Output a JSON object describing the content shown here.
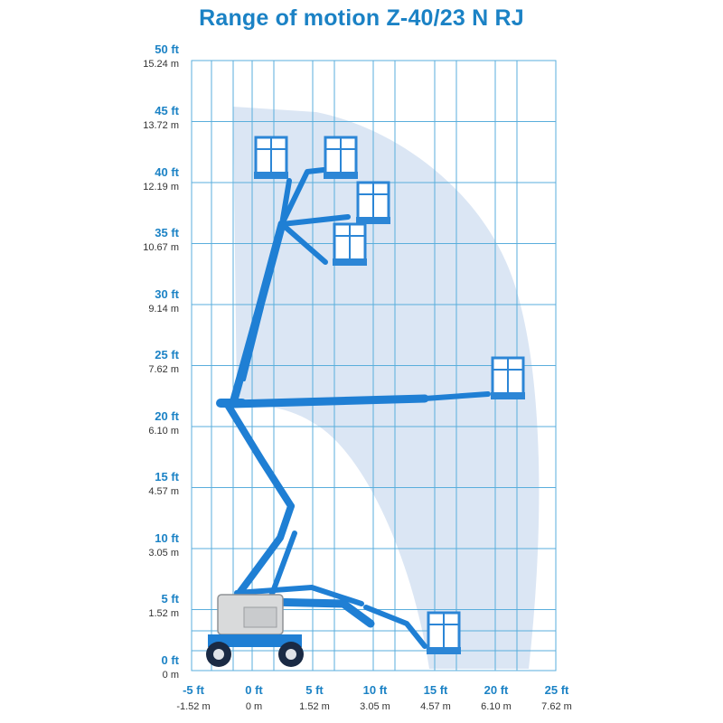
{
  "title": "Range of motion Z-40/23 N RJ",
  "colors": {
    "title": "#1b82c5",
    "grid": "#5aaedc",
    "envelope": "#dbe6f4",
    "boom": "#1f7fd4",
    "platform": "#2c86d6",
    "chassis": "#d9dadb",
    "wheel": "#1a2a44"
  },
  "axes": {
    "y_ticks": [
      {
        "ft": "50 ft",
        "m": "15.24 m"
      },
      {
        "ft": "45 ft",
        "m": "13.72 m"
      },
      {
        "ft": "40 ft",
        "m": "12.19 m"
      },
      {
        "ft": "35 ft",
        "m": "10.67 m"
      },
      {
        "ft": "30 ft",
        "m": "9.14 m"
      },
      {
        "ft": "25 ft",
        "m": "7.62 m"
      },
      {
        "ft": "20 ft",
        "m": "6.10 m"
      },
      {
        "ft": "15 ft",
        "m": "4.57 m"
      },
      {
        "ft": "10 ft",
        "m": "3.05 m"
      },
      {
        "ft": "5 ft",
        "m": "1.52 m"
      },
      {
        "ft": "0 ft",
        "m": "0 m"
      }
    ],
    "x_ticks": [
      {
        "ft": "-5 ft",
        "m": "-1.52 m"
      },
      {
        "ft": "0 ft",
        "m": "0 m"
      },
      {
        "ft": "5 ft",
        "m": "1.52 m"
      },
      {
        "ft": "10 ft",
        "m": "3.05 m"
      },
      {
        "ft": "15 ft",
        "m": "4.57 m"
      },
      {
        "ft": "20 ft",
        "m": "6.10 m"
      },
      {
        "ft": "25 ft",
        "m": "7.62 m"
      }
    ]
  }
}
